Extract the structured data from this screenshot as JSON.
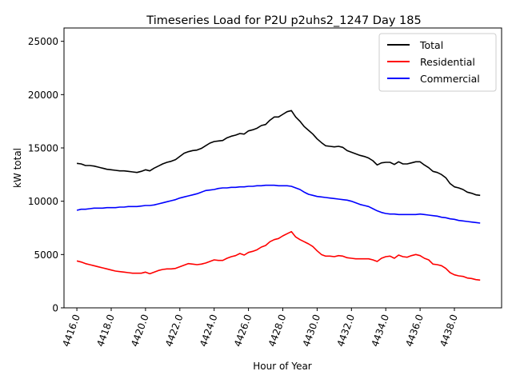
{
  "chart_data": {
    "type": "line",
    "title": "Timeseries Load for P2U p2uhs2_1247  Day 185",
    "xlabel": "Hour of Year",
    "ylabel": "kW total",
    "xlim": [
      4415.25,
      4440.75
    ],
    "ylim": [
      0,
      26250
    ],
    "xticks": [
      4416,
      4418,
      4420,
      4422,
      4424,
      4426,
      4428,
      4430,
      4432,
      4434,
      4436,
      4438
    ],
    "xtick_labels": [
      "4416.0",
      "4418.0",
      "4420.0",
      "4422.0",
      "4424.0",
      "4426.0",
      "4428.0",
      "4430.0",
      "4432.0",
      "4434.0",
      "4436.0",
      "4438.0"
    ],
    "yticks": [
      0,
      5000,
      10000,
      15000,
      20000,
      25000
    ],
    "ytick_labels": [
      "0",
      "5000",
      "10000",
      "15000",
      "20000",
      "25000"
    ],
    "grid": false,
    "legend": {
      "position": "top-right"
    },
    "x_start": 4416,
    "x_step": 0.25,
    "series": [
      {
        "name": "Total",
        "color": "#000000",
        "values": [
          13550,
          13500,
          13350,
          13350,
          13300,
          13200,
          13100,
          13000,
          12950,
          12900,
          12850,
          12850,
          12800,
          12750,
          12700,
          12800,
          12950,
          12850,
          13100,
          13300,
          13500,
          13650,
          13750,
          13900,
          14200,
          14500,
          14650,
          14750,
          14800,
          14950,
          15200,
          15450,
          15600,
          15650,
          15700,
          15950,
          16100,
          16200,
          16350,
          16300,
          16600,
          16700,
          16850,
          17100,
          17200,
          17600,
          17900,
          17900,
          18150,
          18400,
          18500,
          17900,
          17500,
          17000,
          16650,
          16300,
          15850,
          15500,
          15200,
          15150,
          15100,
          15150,
          15050,
          14750,
          14600,
          14450,
          14300,
          14200,
          14050,
          13800,
          13400,
          13600,
          13650,
          13650,
          13450,
          13700,
          13500,
          13500,
          13600,
          13700,
          13700,
          13400,
          13150,
          12800,
          12700,
          12500,
          12200,
          11650,
          11350,
          11250,
          11100,
          10850,
          10750,
          10600,
          10550
        ]
      },
      {
        "name": "Residential",
        "color": "#ff0000",
        "values": [
          4400,
          4300,
          4150,
          4050,
          3950,
          3850,
          3750,
          3650,
          3550,
          3450,
          3400,
          3350,
          3300,
          3250,
          3250,
          3250,
          3350,
          3200,
          3350,
          3500,
          3600,
          3650,
          3650,
          3700,
          3850,
          4000,
          4150,
          4100,
          4050,
          4100,
          4200,
          4350,
          4500,
          4450,
          4450,
          4650,
          4800,
          4900,
          5100,
          4950,
          5200,
          5300,
          5450,
          5700,
          5850,
          6200,
          6400,
          6500,
          6750,
          6950,
          7150,
          6650,
          6400,
          6200,
          6000,
          5750,
          5350,
          5000,
          4850,
          4850,
          4800,
          4900,
          4850,
          4700,
          4650,
          4600,
          4600,
          4600,
          4600,
          4500,
          4350,
          4650,
          4800,
          4850,
          4650,
          4950,
          4800,
          4750,
          4900,
          5000,
          4900,
          4650,
          4500,
          4100,
          4050,
          3950,
          3700,
          3300,
          3100,
          3000,
          2950,
          2800,
          2750,
          2650,
          2600
        ]
      },
      {
        "name": "Commercial",
        "color": "#0000ff",
        "values": [
          9150,
          9250,
          9250,
          9300,
          9350,
          9350,
          9350,
          9400,
          9400,
          9400,
          9450,
          9450,
          9500,
          9500,
          9500,
          9550,
          9600,
          9600,
          9650,
          9750,
          9850,
          9950,
          10050,
          10150,
          10300,
          10400,
          10500,
          10600,
          10700,
          10850,
          11000,
          11050,
          11100,
          11200,
          11250,
          11250,
          11300,
          11300,
          11350,
          11350,
          11400,
          11400,
          11450,
          11450,
          11500,
          11500,
          11500,
          11450,
          11450,
          11450,
          11400,
          11250,
          11100,
          10850,
          10650,
          10550,
          10450,
          10400,
          10350,
          10300,
          10250,
          10200,
          10150,
          10100,
          10000,
          9850,
          9700,
          9600,
          9500,
          9300,
          9100,
          8950,
          8850,
          8800,
          8800,
          8750,
          8750,
          8750,
          8750,
          8750,
          8800,
          8750,
          8700,
          8650,
          8600,
          8500,
          8450,
          8350,
          8300,
          8200,
          8150,
          8100,
          8050,
          8000,
          7950
        ]
      }
    ]
  }
}
